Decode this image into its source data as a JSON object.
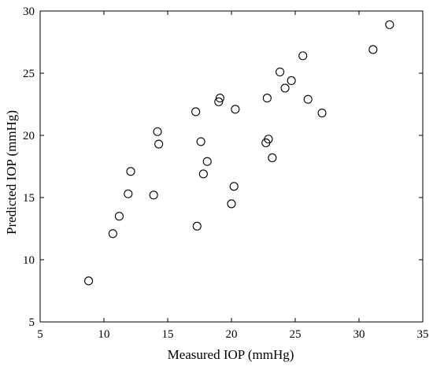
{
  "chart_data": {
    "type": "scatter",
    "xlabel": "Measured IOP (mmHg)",
    "ylabel": "Predicted IOP (mmHg)",
    "xlim": [
      5,
      35
    ],
    "ylim": [
      5,
      30
    ],
    "xticks": [
      5,
      10,
      15,
      20,
      25,
      30,
      35
    ],
    "yticks": [
      5,
      10,
      15,
      20,
      25,
      30
    ],
    "grid": false,
    "marker": "open-circle",
    "marker_color": "#000000",
    "series": [
      {
        "x": [
          8.8,
          10.7,
          11.2,
          11.9,
          12.1,
          13.9,
          14.2,
          14.3,
          17.2,
          17.3,
          17.6,
          17.8,
          18.1,
          19.0,
          19.1,
          20.0,
          20.2,
          20.3,
          22.7,
          22.8,
          22.9,
          23.2,
          23.8,
          24.2,
          24.7,
          25.6,
          26.0,
          27.1,
          31.1,
          32.4
        ],
        "y": [
          8.3,
          12.1,
          13.5,
          15.3,
          17.1,
          15.2,
          20.3,
          19.3,
          21.9,
          12.7,
          19.5,
          16.9,
          17.9,
          22.7,
          23.0,
          14.5,
          15.9,
          22.1,
          19.4,
          23.0,
          19.7,
          18.2,
          25.1,
          23.8,
          24.4,
          26.4,
          22.9,
          21.8,
          26.9,
          28.9
        ]
      }
    ]
  }
}
